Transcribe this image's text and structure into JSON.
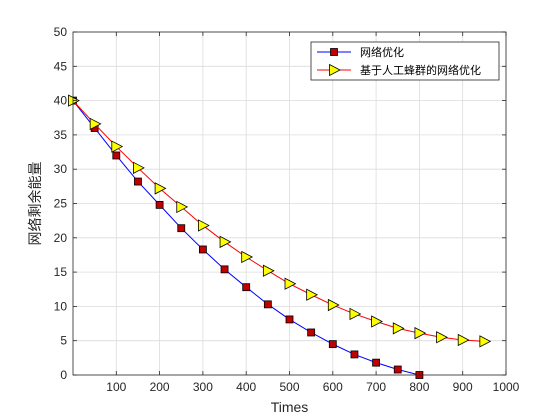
{
  "chart_data": {
    "type": "line",
    "xlabel": "Times",
    "ylabel": "网络剩余能量",
    "xlim": [
      0,
      1000
    ],
    "ylim": [
      0,
      50
    ],
    "xticks": [
      100,
      200,
      300,
      400,
      500,
      600,
      700,
      800,
      900,
      1000
    ],
    "yticks": [
      0,
      5,
      10,
      15,
      20,
      25,
      30,
      35,
      40,
      45,
      50
    ],
    "grid": true,
    "legend_position": "top-right",
    "series": [
      {
        "name": "网络优化",
        "color": "#0000ff",
        "marker": "square",
        "marker_color": "#c00000",
        "x": [
          0,
          50,
          100,
          150,
          200,
          250,
          300,
          350,
          400,
          450,
          500,
          550,
          600,
          650,
          700,
          750,
          800
        ],
        "y": [
          40,
          36,
          32,
          28.2,
          24.8,
          21.4,
          18.3,
          15.4,
          12.8,
          10.3,
          8.1,
          6.2,
          4.5,
          3.0,
          1.8,
          0.8,
          0
        ]
      },
      {
        "name": "基于人工蜂群的网络优化",
        "color": "#ff0000",
        "marker": "triangle-right",
        "marker_color": "#ffff00",
        "x": [
          0,
          50,
          100,
          150,
          200,
          250,
          300,
          350,
          400,
          450,
          500,
          550,
          600,
          650,
          700,
          750,
          800,
          850,
          900,
          950
        ],
        "y": [
          40,
          36.6,
          33.3,
          30.2,
          27.2,
          24.5,
          21.8,
          19.4,
          17.2,
          15.2,
          13.3,
          11.7,
          10.2,
          8.9,
          7.8,
          6.8,
          6.1,
          5.5,
          5.1,
          4.9
        ]
      }
    ]
  }
}
